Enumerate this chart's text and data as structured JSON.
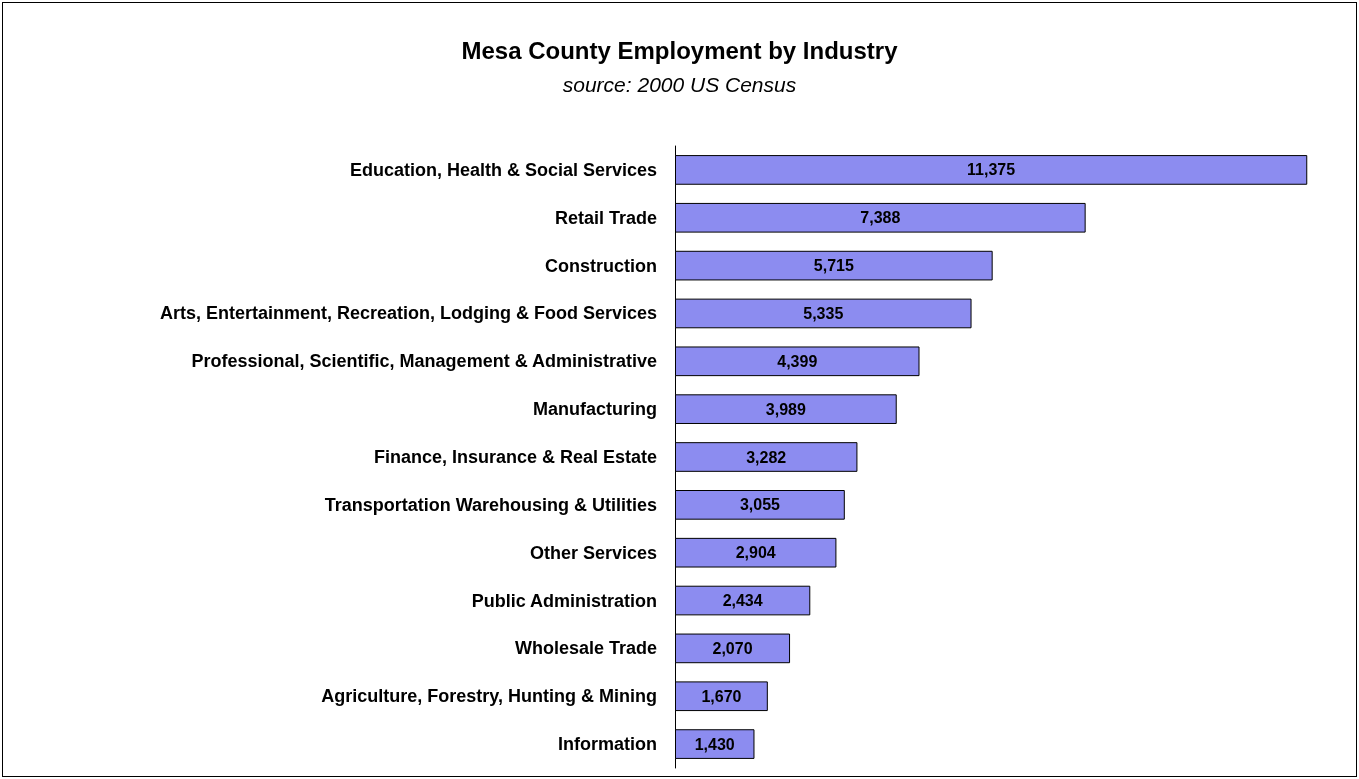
{
  "chart_data": {
    "type": "bar",
    "title": "Mesa County Employment by Industry",
    "subtitle": "source: 2000 US Census",
    "orientation": "horizontal",
    "categories": [
      "Education, Health & Social Services",
      "Retail Trade",
      "Construction",
      "Arts, Entertainment, Recreation, Lodging & Food Services",
      "Professional, Scientific, Management & Administrative",
      "Manufacturing",
      "Finance, Insurance & Real Estate",
      "Transportation Warehousing & Utilities",
      "Other Services",
      "Public Administration",
      "Wholesale Trade",
      "Agriculture, Forestry, Hunting & Mining",
      "Information"
    ],
    "values": [
      11375,
      7388,
      5715,
      5335,
      4399,
      3989,
      3282,
      3055,
      2904,
      2434,
      2070,
      1670,
      1430
    ],
    "value_labels": [
      "11,375",
      "7,388",
      "5,715",
      "5,335",
      "4,399",
      "3,989",
      "3,282",
      "3,055",
      "2,904",
      "2,434",
      "2,070",
      "1,670",
      "1,430"
    ],
    "color": "#8c8cf0"
  }
}
